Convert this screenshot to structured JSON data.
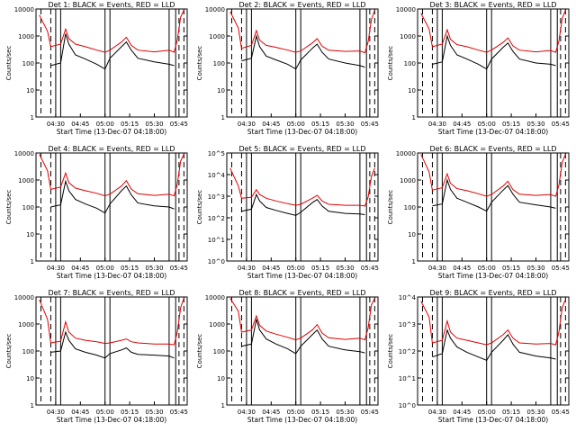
{
  "figure": {
    "background": "#ffffff",
    "events_color": "#000000",
    "lld_color": "#e00000"
  },
  "chart_data": [
    {
      "type": "line",
      "title": "Det 1: BLACK = Events, RED = LLD",
      "xlabel": "Start Time (13-Dec-07 04:18:00)",
      "ylabel": "Counts/sec",
      "x_ticks": [
        "04:30",
        "04:45",
        "05:00",
        "05:15",
        "05:30",
        "05:45"
      ],
      "y_ticks": [
        "1",
        "10",
        "100",
        "1000",
        "10000"
      ],
      "ylim": [
        1,
        10000
      ],
      "scale": "log",
      "x": [
        "04:20",
        "04:25",
        "04:27",
        "04:33",
        "04:36",
        "04:38",
        "04:42",
        "04:48",
        "04:55",
        "05:00",
        "05:03",
        "05:10",
        "05:13",
        "05:16",
        "05:20",
        "05:30",
        "05:39",
        "05:42",
        "05:44",
        "05:46",
        "05:48"
      ],
      "series": [
        {
          "name": "Events",
          "color": "#000000",
          "values": [
            0,
            0,
            80,
            100,
            1200,
            500,
            200,
            140,
            90,
            60,
            150,
            400,
            600,
            300,
            150,
            110,
            90,
            80,
            0,
            0,
            0
          ]
        },
        {
          "name": "LLD",
          "color": "#e00000",
          "values": [
            6000,
            1500,
            400,
            500,
            1800,
            800,
            500,
            400,
            300,
            250,
            300,
            600,
            900,
            450,
            300,
            260,
            300,
            250,
            700,
            5000,
            9000
          ]
        }
      ],
      "vlines_solid": [
        "04:30",
        "04:33",
        "05:00",
        "05:03",
        "05:39",
        "05:43"
      ],
      "vlines_dashed": [
        "04:21",
        "04:27",
        "05:45",
        "05:48"
      ]
    },
    {
      "type": "line",
      "title": "Det 2: BLACK = Events, RED = LLD",
      "xlabel": "Start Time (13-Dec-07 04:18:00)",
      "ylabel": "Counts/sec",
      "x_ticks": [
        "04:30",
        "04:45",
        "05:00",
        "05:15",
        "05:30",
        "05:45"
      ],
      "y_ticks": [
        "1",
        "10",
        "100",
        "1000",
        "10000"
      ],
      "ylim": [
        1,
        10000
      ],
      "scale": "log",
      "x": [
        "04:20",
        "04:25",
        "04:27",
        "04:33",
        "04:36",
        "04:38",
        "04:42",
        "04:48",
        "04:55",
        "05:00",
        "05:03",
        "05:10",
        "05:13",
        "05:16",
        "05:20",
        "05:30",
        "05:39",
        "05:42",
        "05:44",
        "05:46",
        "05:48"
      ],
      "series": [
        {
          "name": "Events",
          "color": "#000000",
          "values": [
            0,
            0,
            120,
            150,
            1000,
            400,
            180,
            130,
            90,
            60,
            130,
            350,
            500,
            250,
            140,
            100,
            80,
            70,
            0,
            0,
            0
          ]
        },
        {
          "name": "LLD",
          "color": "#e00000",
          "values": [
            8000,
            2000,
            350,
            450,
            1600,
            700,
            450,
            380,
            300,
            250,
            280,
            550,
            800,
            420,
            300,
            270,
            280,
            240,
            600,
            4000,
            9000
          ]
        }
      ],
      "vlines_solid": [
        "04:30",
        "04:33",
        "05:00",
        "05:03",
        "05:39",
        "05:43"
      ],
      "vlines_dashed": [
        "04:21",
        "04:27",
        "05:45",
        "05:48"
      ]
    },
    {
      "type": "line",
      "title": "Det 3: BLACK = Events, RED = LLD",
      "xlabel": "Start Time (13-Dec-07 04:18:00)",
      "ylabel": "Counts/sec",
      "x_ticks": [
        "04:30",
        "04:45",
        "05:00",
        "05:15",
        "05:30",
        "05:45"
      ],
      "y_ticks": [
        "1",
        "10",
        "100",
        "1000",
        "10000"
      ],
      "ylim": [
        1,
        10000
      ],
      "scale": "log",
      "x": [
        "04:20",
        "04:25",
        "04:27",
        "04:33",
        "04:36",
        "04:38",
        "04:42",
        "04:48",
        "04:55",
        "05:00",
        "05:03",
        "05:10",
        "05:13",
        "05:16",
        "05:20",
        "05:30",
        "05:39",
        "05:42",
        "05:44",
        "05:46",
        "05:48"
      ],
      "series": [
        {
          "name": "Events",
          "color": "#000000",
          "values": [
            0,
            0,
            90,
            110,
            1000,
            450,
            200,
            140,
            90,
            60,
            140,
            380,
            550,
            270,
            140,
            100,
            90,
            80,
            0,
            0,
            0
          ]
        },
        {
          "name": "LLD",
          "color": "#e00000",
          "values": [
            7000,
            1800,
            400,
            500,
            1700,
            750,
            480,
            400,
            300,
            250,
            300,
            580,
            850,
            430,
            300,
            260,
            290,
            250,
            650,
            4500,
            9000
          ]
        }
      ],
      "vlines_solid": [
        "04:30",
        "04:33",
        "05:00",
        "05:03",
        "05:39",
        "05:43"
      ],
      "vlines_dashed": [
        "04:21",
        "04:27",
        "05:45",
        "05:48"
      ]
    },
    {
      "type": "line",
      "title": "Det 4: BLACK = Events, RED = LLD",
      "xlabel": "Start Time (13-Dec-07 04:18:00)",
      "ylabel": "Counts/sec",
      "x_ticks": [
        "04:30",
        "04:45",
        "05:00",
        "05:15",
        "05:30",
        "05:45"
      ],
      "y_ticks": [
        "1",
        "10",
        "100",
        "1000",
        "10000"
      ],
      "ylim": [
        1,
        10000
      ],
      "scale": "log",
      "x": [
        "04:20",
        "04:25",
        "04:27",
        "04:33",
        "04:36",
        "04:38",
        "04:42",
        "04:48",
        "04:55",
        "05:00",
        "05:03",
        "05:10",
        "05:13",
        "05:16",
        "05:20",
        "05:30",
        "05:39",
        "05:42",
        "05:44",
        "05:46",
        "05:48"
      ],
      "series": [
        {
          "name": "Events",
          "color": "#000000",
          "values": [
            0,
            0,
            100,
            120,
            900,
            400,
            190,
            130,
            90,
            60,
            130,
            400,
            600,
            280,
            140,
            110,
            100,
            85,
            0,
            0,
            0
          ]
        },
        {
          "name": "LLD",
          "color": "#e00000",
          "values": [
            9000,
            2200,
            450,
            550,
            1800,
            800,
            500,
            400,
            320,
            260,
            300,
            600,
            950,
            460,
            310,
            270,
            300,
            260,
            700,
            5000,
            9000
          ]
        }
      ],
      "vlines_solid": [
        "04:30",
        "04:33",
        "05:00",
        "05:03",
        "05:39",
        "05:43"
      ],
      "vlines_dashed": [
        "04:21",
        "04:27",
        "05:45",
        "05:48"
      ]
    },
    {
      "type": "line",
      "title": "Det 5: BLACK = Events, RED = LLD",
      "xlabel": "Start Time (13-Dec-07 04:18:00)",
      "ylabel": "Counts/sec",
      "x_ticks": [
        "04:30",
        "04:45",
        "05:00",
        "05:15",
        "05:30",
        "05:45"
      ],
      "y_ticks": [
        "10^0",
        "10^1",
        "10^2",
        "10^3",
        "10^4",
        "10^5"
      ],
      "ylim": [
        1,
        100000
      ],
      "scale": "log",
      "x": [
        "04:20",
        "04:25",
        "04:27",
        "04:33",
        "04:36",
        "04:38",
        "04:42",
        "04:48",
        "04:55",
        "05:00",
        "05:03",
        "05:10",
        "05:13",
        "05:16",
        "05:20",
        "05:30",
        "05:39",
        "05:42",
        "05:44",
        "05:46",
        "05:48"
      ],
      "series": [
        {
          "name": "Events",
          "color": "#000000",
          "values": [
            0,
            0,
            200,
            250,
            1200,
            600,
            300,
            220,
            160,
            130,
            180,
            500,
            700,
            350,
            200,
            160,
            150,
            140,
            0,
            0,
            0
          ]
        },
        {
          "name": "LLD",
          "color": "#e00000",
          "values": [
            20000,
            3000,
            800,
            900,
            2000,
            1200,
            800,
            600,
            450,
            380,
            420,
            800,
            1100,
            600,
            420,
            380,
            380,
            350,
            900,
            8000,
            20000
          ]
        }
      ],
      "vlines_solid": [
        "04:30",
        "04:33",
        "05:00",
        "05:03",
        "05:39",
        "05:43"
      ],
      "vlines_dashed": [
        "04:21",
        "04:27",
        "05:45",
        "05:48"
      ]
    },
    {
      "type": "line",
      "title": "Det 6: BLACK = Events, RED = LLD",
      "xlabel": "Start Time (13-Dec-07 04:18:00)",
      "ylabel": "Counts/sec",
      "x_ticks": [
        "04:30",
        "04:45",
        "05:00",
        "05:15",
        "05:30",
        "05:45"
      ],
      "y_ticks": [
        "1",
        "10",
        "100",
        "1000",
        "10000"
      ],
      "ylim": [
        1,
        10000
      ],
      "scale": "log",
      "x": [
        "04:20",
        "04:25",
        "04:27",
        "04:33",
        "04:36",
        "04:38",
        "04:42",
        "04:48",
        "04:55",
        "05:00",
        "05:03",
        "05:10",
        "05:13",
        "05:16",
        "05:20",
        "05:30",
        "05:39",
        "05:42",
        "05:44",
        "05:46",
        "05:48"
      ],
      "series": [
        {
          "name": "Events",
          "color": "#000000",
          "values": [
            0,
            0,
            110,
            130,
            1000,
            450,
            210,
            150,
            100,
            70,
            150,
            420,
            620,
            300,
            150,
            120,
            100,
            90,
            0,
            0,
            0
          ]
        },
        {
          "name": "LLD",
          "color": "#e00000",
          "values": [
            9000,
            2000,
            420,
            520,
            1700,
            760,
            480,
            400,
            310,
            250,
            290,
            600,
            900,
            440,
            300,
            270,
            290,
            250,
            650,
            4500,
            9000
          ]
        }
      ],
      "vlines_solid": [
        "04:30",
        "04:33",
        "05:00",
        "05:03",
        "05:39",
        "05:43"
      ],
      "vlines_dashed": [
        "04:21",
        "04:27",
        "05:45",
        "05:48"
      ]
    },
    {
      "type": "line",
      "title": "Det 7: BLACK = Events, RED = LLD",
      "xlabel": "Start Time (13-Dec-07 04:18:00)",
      "ylabel": "Counts/sec",
      "x_ticks": [
        "04:30",
        "04:45",
        "05:00",
        "05:15",
        "05:30",
        "05:45"
      ],
      "y_ticks": [
        "1",
        "10",
        "100",
        "1000",
        "10000"
      ],
      "ylim": [
        1,
        10000
      ],
      "scale": "log",
      "x": [
        "04:20",
        "04:25",
        "04:27",
        "04:33",
        "04:36",
        "04:38",
        "04:42",
        "04:48",
        "04:55",
        "05:00",
        "05:03",
        "05:10",
        "05:13",
        "05:16",
        "05:20",
        "05:30",
        "05:39",
        "05:42",
        "05:44",
        "05:46",
        "05:48"
      ],
      "series": [
        {
          "name": "Events",
          "color": "#000000",
          "values": [
            0,
            0,
            90,
            100,
            500,
            250,
            120,
            90,
            70,
            55,
            80,
            110,
            130,
            90,
            75,
            70,
            65,
            55,
            0,
            0,
            0
          ]
        },
        {
          "name": "LLD",
          "color": "#e00000",
          "values": [
            8000,
            1500,
            200,
            230,
            1200,
            500,
            300,
            250,
            220,
            190,
            200,
            250,
            280,
            220,
            200,
            180,
            180,
            170,
            500,
            4000,
            9000
          ]
        }
      ],
      "vlines_solid": [
        "04:30",
        "04:33",
        "05:00",
        "05:03",
        "05:39",
        "05:43"
      ],
      "vlines_dashed": [
        "04:21",
        "04:27",
        "05:45",
        "05:48"
      ]
    },
    {
      "type": "line",
      "title": "Det 8: BLACK = Events, RED = LLD",
      "xlabel": "Start Time (13-Dec-07 04:18:00)",
      "ylabel": "Counts/sec",
      "x_ticks": [
        "04:30",
        "04:45",
        "05:00",
        "05:15",
        "05:30",
        "05:45"
      ],
      "y_ticks": [
        "1",
        "10",
        "100",
        "1000",
        "10000"
      ],
      "ylim": [
        1,
        10000
      ],
      "scale": "log",
      "x": [
        "04:20",
        "04:25",
        "04:27",
        "04:33",
        "04:36",
        "04:38",
        "04:42",
        "04:48",
        "04:55",
        "05:00",
        "05:03",
        "05:10",
        "05:13",
        "05:16",
        "05:20",
        "05:30",
        "05:39",
        "05:42",
        "05:44",
        "05:46",
        "05:48"
      ],
      "series": [
        {
          "name": "Events",
          "color": "#000000",
          "values": [
            0,
            0,
            150,
            180,
            1500,
            600,
            280,
            180,
            120,
            80,
            150,
            400,
            600,
            280,
            150,
            110,
            95,
            85,
            0,
            0,
            0
          ]
        },
        {
          "name": "LLD",
          "color": "#e00000",
          "values": [
            9000,
            3000,
            500,
            600,
            2000,
            900,
            550,
            420,
            320,
            260,
            300,
            600,
            950,
            460,
            310,
            270,
            300,
            260,
            700,
            5000,
            9000
          ]
        }
      ],
      "vlines_solid": [
        "04:30",
        "04:33",
        "05:00",
        "05:03",
        "05:39",
        "05:43"
      ],
      "vlines_dashed": [
        "04:21",
        "04:27",
        "05:45",
        "05:48"
      ]
    },
    {
      "type": "line",
      "title": "Det 9: BLACK = Events, RED = LLD",
      "xlabel": "Start Time (13-Dec-07 04:18:00)",
      "ylabel": "Counts/sec",
      "x_ticks": [
        "04:30",
        "04:45",
        "05:00",
        "05:15",
        "05:30",
        "05:45"
      ],
      "y_ticks": [
        "10^0",
        "10^1",
        "10^2",
        "10^3",
        "10^4"
      ],
      "ylim": [
        1,
        10000
      ],
      "scale": "log",
      "x": [
        "04:20",
        "04:25",
        "04:27",
        "04:33",
        "04:36",
        "04:38",
        "04:42",
        "04:48",
        "04:55",
        "05:00",
        "05:03",
        "05:10",
        "05:13",
        "05:16",
        "05:20",
        "05:30",
        "05:39",
        "05:42",
        "05:44",
        "05:46",
        "05:48"
      ],
      "series": [
        {
          "name": "Events",
          "color": "#000000",
          "values": [
            0,
            0,
            60,
            80,
            600,
            300,
            140,
            90,
            60,
            45,
            90,
            250,
            400,
            180,
            90,
            65,
            55,
            50,
            0,
            0,
            0
          ]
        },
        {
          "name": "LLD",
          "color": "#e00000",
          "values": [
            7000,
            1800,
            200,
            250,
            1300,
            500,
            300,
            250,
            200,
            170,
            200,
            400,
            600,
            300,
            200,
            180,
            190,
            170,
            500,
            4000,
            8000
          ]
        }
      ],
      "vlines_solid": [
        "04:30",
        "04:33",
        "05:00",
        "05:03",
        "05:39",
        "05:43"
      ],
      "vlines_dashed": [
        "04:21",
        "04:27",
        "05:45",
        "05:48"
      ]
    }
  ]
}
